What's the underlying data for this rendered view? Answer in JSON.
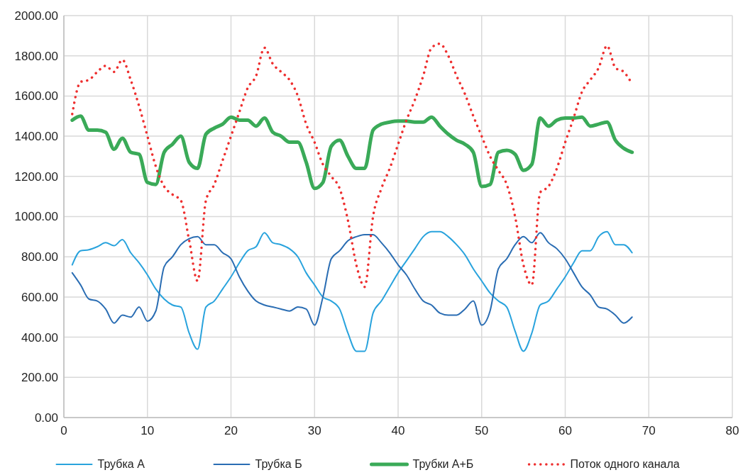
{
  "chart_data": {
    "type": "line",
    "x": [
      1,
      2,
      3,
      4,
      5,
      6,
      7,
      8,
      9,
      10,
      11,
      12,
      13,
      14,
      15,
      16,
      17,
      18,
      19,
      20,
      21,
      22,
      23,
      24,
      25,
      26,
      27,
      28,
      29,
      30,
      31,
      32,
      33,
      34,
      35,
      36,
      37,
      38,
      39,
      40,
      41,
      42,
      43,
      44,
      45,
      46,
      47,
      48,
      49,
      50,
      51,
      52,
      53,
      54,
      55,
      56,
      57,
      58,
      59,
      60,
      61,
      62,
      63,
      64,
      65,
      66,
      67,
      68
    ],
    "series": [
      {
        "name": "Трубка А",
        "color": "#29a3dd",
        "line_style": "solid",
        "values": [
          760,
          830,
          835,
          850,
          870,
          855,
          885,
          820,
          770,
          710,
          640,
          590,
          560,
          550,
          420,
          340,
          550,
          580,
          640,
          700,
          770,
          830,
          850,
          920,
          870,
          860,
          840,
          800,
          720,
          660,
          600,
          580,
          540,
          420,
          330,
          330,
          520,
          580,
          650,
          720,
          780,
          840,
          900,
          925,
          925,
          900,
          860,
          810,
          740,
          680,
          620,
          580,
          550,
          430,
          330,
          420,
          560,
          580,
          640,
          700,
          770,
          830,
          830,
          900,
          925,
          860,
          860,
          820
        ]
      },
      {
        "name": "Трубка Б",
        "color": "#2a6db3",
        "line_style": "solid",
        "values": [
          720,
          660,
          590,
          580,
          540,
          470,
          510,
          500,
          550,
          480,
          530,
          750,
          800,
          860,
          890,
          900,
          860,
          860,
          820,
          790,
          700,
          630,
          580,
          560,
          550,
          540,
          530,
          550,
          540,
          460,
          600,
          790,
          830,
          880,
          900,
          910,
          910,
          870,
          820,
          760,
          710,
          640,
          580,
          560,
          520,
          510,
          510,
          540,
          580,
          460,
          530,
          740,
          790,
          860,
          900,
          870,
          920,
          870,
          840,
          790,
          720,
          650,
          610,
          550,
          540,
          510,
          470,
          500
        ]
      },
      {
        "name": "Трубки А+Б",
        "color": "#3aaa58",
        "line_style": "solid",
        "values": [
          1480,
          1500,
          1430,
          1430,
          1420,
          1335,
          1390,
          1320,
          1310,
          1170,
          1160,
          1320,
          1360,
          1400,
          1270,
          1240,
          1410,
          1440,
          1460,
          1495,
          1480,
          1480,
          1450,
          1490,
          1420,
          1400,
          1370,
          1370,
          1270,
          1140,
          1170,
          1350,
          1380,
          1300,
          1240,
          1240,
          1430,
          1460,
          1470,
          1475,
          1475,
          1470,
          1470,
          1495,
          1450,
          1410,
          1380,
          1360,
          1320,
          1150,
          1160,
          1320,
          1330,
          1310,
          1230,
          1260,
          1490,
          1450,
          1480,
          1490,
          1490,
          1495,
          1450,
          1460,
          1470,
          1380,
          1340,
          1320
        ]
      },
      {
        "name": "Поток одного канала",
        "color": "#ee2f2f",
        "line_style": "dotted",
        "values": [
          1510,
          1670,
          1680,
          1720,
          1750,
          1720,
          1780,
          1680,
          1550,
          1400,
          1250,
          1150,
          1110,
          1080,
          880,
          680,
          1080,
          1160,
          1280,
          1400,
          1520,
          1640,
          1700,
          1840,
          1760,
          1720,
          1680,
          1600,
          1460,
          1370,
          1260,
          1200,
          1140,
          980,
          760,
          650,
          1000,
          1140,
          1240,
          1360,
          1480,
          1580,
          1700,
          1840,
          1860,
          1800,
          1700,
          1610,
          1500,
          1400,
          1300,
          1230,
          1160,
          1000,
          760,
          660,
          1120,
          1150,
          1240,
          1370,
          1490,
          1620,
          1680,
          1740,
          1850,
          1740,
          1720,
          1660
        ]
      }
    ],
    "xlim": [
      0,
      80
    ],
    "xticks": [
      0,
      10,
      20,
      30,
      40,
      50,
      60,
      70,
      80
    ],
    "ylim": [
      0,
      2000
    ],
    "yticks": [
      {
        "value": 0,
        "label": "0.00"
      },
      {
        "value": 200,
        "label": "200.00"
      },
      {
        "value": 400,
        "label": "400.00"
      },
      {
        "value": 600,
        "label": "600.00"
      },
      {
        "value": 800,
        "label": "800.00"
      },
      {
        "value": 1000,
        "label": "1000.00"
      },
      {
        "value": 1200,
        "label": "1200.00"
      },
      {
        "value": 1400,
        "label": "1400.00"
      },
      {
        "value": 1600,
        "label": "1600.00"
      },
      {
        "value": 1800,
        "label": "1800.00"
      },
      {
        "value": 2000,
        "label": "2000.00"
      }
    ],
    "grid": true,
    "legend": "bottom"
  }
}
